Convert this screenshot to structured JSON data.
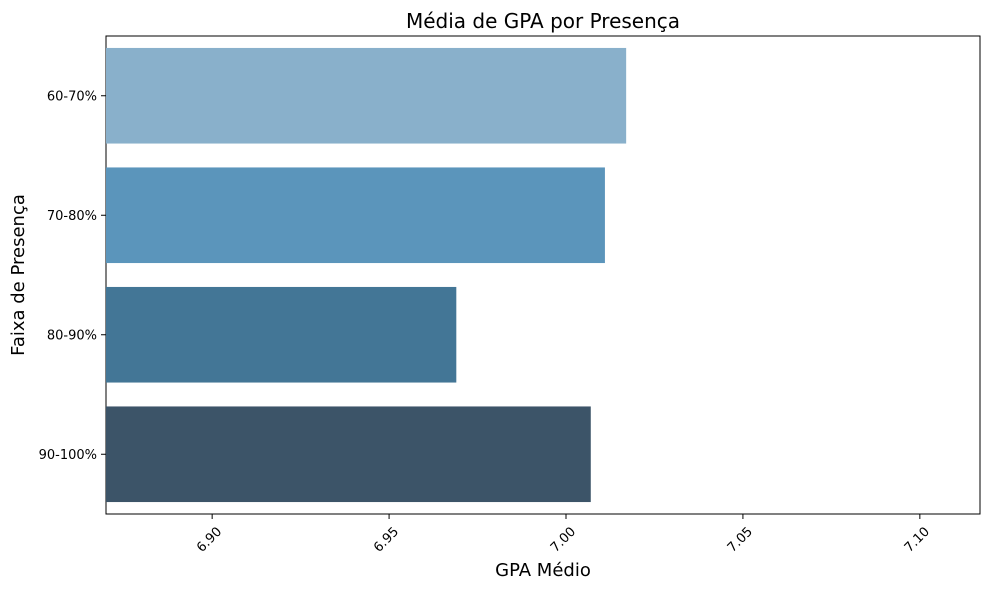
{
  "chart_data": {
    "type": "bar",
    "orientation": "horizontal",
    "title": "Média de GPA por Presença",
    "xlabel": "GPA Médio",
    "ylabel": "Faixa de Presença",
    "categories": [
      "60-70%",
      "70-80%",
      "80-90%",
      "90-100%"
    ],
    "values": [
      7.017,
      7.011,
      6.969,
      7.007
    ],
    "xlim": [
      6.87,
      7.117
    ],
    "xticks": [
      6.9,
      6.95,
      7.0,
      7.05,
      7.1
    ],
    "xtick_labels": [
      "6.90",
      "6.95",
      "7.00",
      "7.05",
      "7.10"
    ],
    "colors": [
      "#89b0cb",
      "#5b95bb",
      "#437696",
      "#3c5468"
    ],
    "grid": false,
    "legend": "none"
  }
}
